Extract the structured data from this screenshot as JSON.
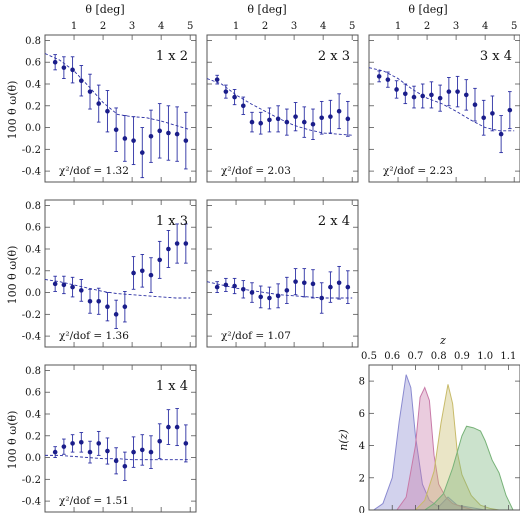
{
  "chart_data": [
    {
      "type": "scatter",
      "title": "1 x 2",
      "chi2_text": "χ²/dof = 1.32",
      "x": [
        0.35,
        0.65,
        0.95,
        1.25,
        1.55,
        1.85,
        2.15,
        2.45,
        2.75,
        3.05,
        3.35,
        3.65,
        3.95,
        4.25,
        4.55,
        4.85
      ],
      "y": [
        0.6,
        0.55,
        0.53,
        0.43,
        0.33,
        0.22,
        0.15,
        -0.02,
        -0.1,
        -0.12,
        -0.23,
        -0.08,
        -0.03,
        -0.05,
        -0.06,
        -0.12
      ],
      "err": [
        0.07,
        0.1,
        0.12,
        0.14,
        0.16,
        0.17,
        0.19,
        0.2,
        0.21,
        0.22,
        0.23,
        0.24,
        0.25,
        0.25,
        0.25,
        0.26
      ],
      "model_x": [
        0,
        0.5,
        1,
        1.5,
        2,
        2.5,
        3,
        3.5,
        4,
        4.5,
        5
      ],
      "model_y": [
        0.68,
        0.62,
        0.52,
        0.38,
        0.23,
        0.12,
        0.1,
        0.09,
        0.06,
        0.02,
        -0.02
      ]
    },
    {
      "type": "scatter",
      "title": "2 x 3",
      "chi2_text": "χ²/dof = 2.03",
      "x": [
        0.35,
        0.65,
        0.95,
        1.25,
        1.55,
        1.85,
        2.15,
        2.45,
        2.75,
        3.05,
        3.35,
        3.65,
        3.95,
        4.25,
        4.55,
        4.85
      ],
      "y": [
        0.44,
        0.33,
        0.28,
        0.2,
        0.05,
        0.04,
        0.07,
        0.08,
        0.05,
        0.1,
        0.05,
        0.03,
        0.09,
        0.1,
        0.15,
        0.08
      ],
      "err": [
        0.04,
        0.06,
        0.07,
        0.08,
        0.09,
        0.1,
        0.11,
        0.12,
        0.12,
        0.13,
        0.14,
        0.14,
        0.15,
        0.15,
        0.16,
        0.16
      ],
      "model_x": [
        0,
        0.5,
        1,
        1.5,
        2,
        2.5,
        3,
        3.5,
        4,
        4.5,
        5
      ],
      "model_y": [
        0.45,
        0.4,
        0.3,
        0.22,
        0.15,
        0.08,
        0.02,
        -0.02,
        -0.05,
        -0.06,
        -0.07
      ]
    },
    {
      "type": "scatter",
      "title": "3 x 4",
      "chi2_text": "χ²/dof = 2.23",
      "x": [
        0.35,
        0.65,
        0.95,
        1.25,
        1.55,
        1.85,
        2.15,
        2.45,
        2.75,
        3.05,
        3.35,
        3.65,
        3.95,
        4.25,
        4.55,
        4.85
      ],
      "y": [
        0.47,
        0.44,
        0.35,
        0.31,
        0.28,
        0.29,
        0.3,
        0.27,
        0.33,
        0.33,
        0.3,
        0.21,
        0.09,
        0.13,
        -0.06,
        0.16
      ],
      "err": [
        0.05,
        0.07,
        0.08,
        0.09,
        0.1,
        0.11,
        0.12,
        0.12,
        0.13,
        0.14,
        0.14,
        0.15,
        0.16,
        0.16,
        0.17,
        0.17
      ],
      "model_x": [
        0,
        0.5,
        1,
        1.5,
        2,
        2.5,
        3,
        3.5,
        4,
        4.5,
        5
      ],
      "model_y": [
        0.55,
        0.52,
        0.45,
        0.35,
        0.27,
        0.22,
        0.15,
        0.07,
        0.0,
        -0.03,
        -0.03
      ]
    },
    {
      "type": "scatter",
      "title": "1 x 3",
      "chi2_text": "χ²/dof = 1.36",
      "x": [
        0.35,
        0.65,
        0.95,
        1.25,
        1.55,
        1.85,
        2.15,
        2.45,
        2.75,
        3.05,
        3.35,
        3.65,
        3.95,
        4.25,
        4.55,
        4.85
      ],
      "y": [
        0.08,
        0.07,
        0.05,
        0.02,
        -0.08,
        -0.08,
        -0.13,
        -0.2,
        -0.13,
        0.18,
        0.2,
        0.16,
        0.3,
        0.4,
        0.45,
        0.45
      ],
      "err": [
        0.07,
        0.08,
        0.09,
        0.1,
        0.11,
        0.12,
        0.13,
        0.13,
        0.14,
        0.15,
        0.15,
        0.16,
        0.17,
        0.17,
        0.18,
        0.18
      ],
      "model_x": [
        0,
        0.5,
        1,
        1.5,
        2,
        2.5,
        3,
        3.5,
        4,
        4.5,
        5
      ],
      "model_y": [
        0.12,
        0.1,
        0.07,
        0.04,
        0.01,
        -0.01,
        -0.02,
        -0.03,
        -0.04,
        -0.05,
        -0.05
      ]
    },
    {
      "type": "scatter",
      "title": "2 x 4",
      "chi2_text": "χ²/dof = 1.07",
      "x": [
        0.35,
        0.65,
        0.95,
        1.25,
        1.55,
        1.85,
        2.15,
        2.45,
        2.75,
        3.05,
        3.35,
        3.65,
        3.95,
        4.25,
        4.55,
        4.85
      ],
      "y": [
        0.05,
        0.07,
        0.06,
        0.03,
        0.0,
        -0.04,
        -0.05,
        -0.03,
        0.02,
        0.1,
        0.09,
        0.08,
        -0.05,
        0.05,
        0.09,
        0.05
      ],
      "err": [
        0.05,
        0.06,
        0.07,
        0.08,
        0.09,
        0.1,
        0.1,
        0.11,
        0.12,
        0.12,
        0.13,
        0.13,
        0.14,
        0.14,
        0.15,
        0.15
      ],
      "model_x": [
        0,
        0.5,
        1,
        1.5,
        2,
        2.5,
        3,
        3.5,
        4,
        4.5,
        5
      ],
      "model_y": [
        0.1,
        0.07,
        0.04,
        0.02,
        0.0,
        -0.02,
        -0.03,
        -0.04,
        -0.05,
        -0.05,
        -0.05
      ]
    },
    {
      "type": "scatter",
      "title": "1 x 4",
      "chi2_text": "χ²/dof = 1.51",
      "x": [
        0.35,
        0.65,
        0.95,
        1.25,
        1.55,
        1.85,
        2.15,
        2.45,
        2.75,
        3.05,
        3.35,
        3.65,
        3.95,
        4.25,
        4.55,
        4.85
      ],
      "y": [
        0.05,
        0.1,
        0.13,
        0.14,
        0.05,
        0.13,
        0.06,
        -0.03,
        -0.08,
        0.05,
        0.07,
        0.05,
        0.15,
        0.28,
        0.28,
        0.13
      ],
      "err": [
        0.05,
        0.07,
        0.08,
        0.09,
        0.1,
        0.11,
        0.12,
        0.12,
        0.13,
        0.14,
        0.14,
        0.15,
        0.16,
        0.16,
        0.17,
        0.17
      ],
      "model_x": [
        0,
        0.5,
        1,
        1.5,
        2,
        2.5,
        3,
        3.5,
        4,
        4.5,
        5
      ],
      "model_y": [
        0.02,
        0.02,
        0.01,
        0.0,
        -0.01,
        -0.01,
        -0.02,
        -0.02,
        -0.02,
        -0.02,
        -0.02
      ]
    },
    {
      "type": "area",
      "xlabel": "z",
      "ylabel": "n(z)",
      "xlim": [
        0.5,
        1.15
      ],
      "ylim": [
        0,
        9
      ],
      "xticks": [
        0.5,
        0.6,
        0.7,
        0.8,
        0.9,
        1.0,
        1.1
      ],
      "yticks": [
        0,
        2,
        4,
        6,
        8
      ],
      "series": [
        {
          "color": "#8a8ad0",
          "x": [
            0.52,
            0.56,
            0.6,
            0.63,
            0.66,
            0.68,
            0.7,
            0.73,
            0.76,
            0.8,
            0.84,
            0.88,
            1.0,
            1.1
          ],
          "y": [
            0,
            0.4,
            2.0,
            5.5,
            8.4,
            7.6,
            4.6,
            1.6,
            0.6,
            0.2,
            0.8,
            0.3,
            0,
            0
          ]
        },
        {
          "color": "#c87aa8",
          "x": [
            0.62,
            0.66,
            0.7,
            0.72,
            0.74,
            0.76,
            0.78,
            0.8,
            0.83,
            0.86,
            0.9,
            0.95,
            1.1
          ],
          "y": [
            0,
            0.8,
            4.0,
            7.0,
            7.6,
            6.8,
            3.4,
            1.6,
            0.8,
            0.4,
            0.2,
            0,
            0
          ]
        },
        {
          "color": "#c8bb6a",
          "x": [
            0.7,
            0.74,
            0.78,
            0.81,
            0.84,
            0.86,
            0.88,
            0.9,
            0.94,
            0.98,
            1.02,
            1.06,
            1.1
          ],
          "y": [
            0,
            0.6,
            2.4,
            5.4,
            7.8,
            6.6,
            3.6,
            2.2,
            0.9,
            0.3,
            0.1,
            0,
            0
          ]
        },
        {
          "color": "#77b278",
          "x": [
            0.74,
            0.78,
            0.82,
            0.86,
            0.9,
            0.92,
            0.95,
            0.98,
            1.0,
            1.03,
            1.06,
            1.09,
            1.12
          ],
          "y": [
            0,
            0.4,
            1.0,
            2.6,
            4.6,
            5.2,
            5.1,
            4.9,
            4.3,
            3.1,
            2.3,
            0.9,
            0
          ]
        }
      ]
    }
  ],
  "labels": {
    "x_axis_title": "θ [deg]",
    "y_axis_title": "100 θ ω(θ)",
    "top_ticks": [
      "1",
      "2",
      "3",
      "4",
      "5"
    ],
    "left_ticks": [
      "0.8",
      "0.6",
      "0.4",
      "0.2",
      "0.0",
      "-0.2",
      "-0.4"
    ],
    "nz_x_ticks": [
      "0.5",
      "0.6",
      "0.7",
      "0.8",
      "0.9",
      "1.0",
      "1.1"
    ],
    "nz_y_ticks": [
      "0",
      "2",
      "4",
      "6",
      "8"
    ],
    "nz_xlabel": "z",
    "nz_ylabel": "n(z)"
  }
}
